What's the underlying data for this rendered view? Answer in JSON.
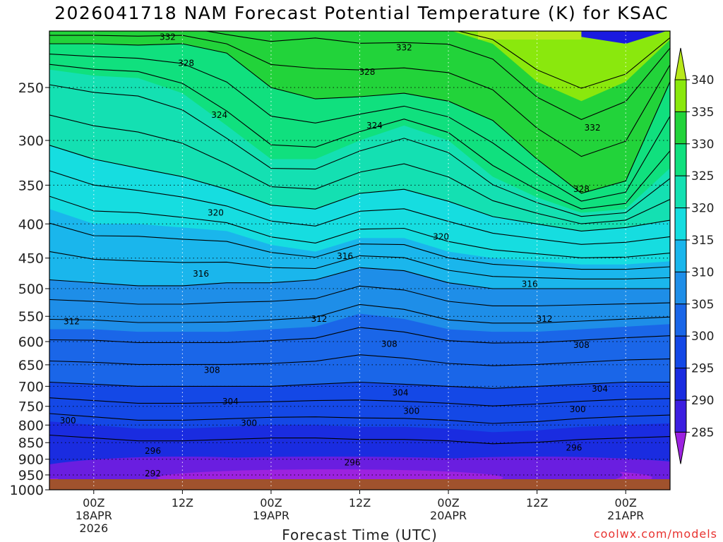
{
  "title": "2026041718 NAM Forecast Potential Temperature (K) for KSAC",
  "credit": "coolwx.com/models",
  "chart_data": {
    "type": "contour",
    "title": "2026041718 NAM Forecast Potential Temperature (K) for KSAC",
    "xlabel": "Forecast Time (UTC)",
    "ylabel": "",
    "y_ticks": [
      250,
      300,
      350,
      400,
      450,
      500,
      550,
      600,
      650,
      700,
      750,
      800,
      850,
      900,
      950,
      1000
    ],
    "y_scale": "log",
    "y_inverted": true,
    "ylim": [
      1000,
      200
    ],
    "x_ticks": [
      {
        "hour": 6,
        "lines": [
          "00Z",
          "18APR",
          "2026"
        ]
      },
      {
        "hour": 18,
        "lines": [
          "12Z"
        ]
      },
      {
        "hour": 30,
        "lines": [
          "00Z",
          "19APR"
        ]
      },
      {
        "hour": 42,
        "lines": [
          "12Z"
        ]
      },
      {
        "hour": 54,
        "lines": [
          "00Z",
          "20APR"
        ]
      },
      {
        "hour": 66,
        "lines": [
          "12Z"
        ]
      },
      {
        "hour": 78,
        "lines": [
          "00Z",
          "21APR"
        ]
      }
    ],
    "xlim": [
      0,
      84
    ],
    "colorbar": {
      "labels": [
        340,
        335,
        330,
        325,
        320,
        315,
        310,
        305,
        300,
        295,
        290,
        285
      ],
      "colors": [
        "#b8e81a",
        "#8ae80d",
        "#22d33a",
        "#10e07e",
        "#14e0b2",
        "#16dde0",
        "#1ab6ec",
        "#1e8ee8",
        "#1a66e8",
        "#1448e6",
        "#1a2ce0",
        "#3c1ee0",
        "#6a1ee0",
        "#9c22e0"
      ]
    },
    "labeled_contours": [
      {
        "value": "332",
        "x_hour": 16,
        "p": 210
      },
      {
        "value": "328",
        "x_hour": 18.5,
        "p": 230
      },
      {
        "value": "332",
        "x_hour": 48,
        "p": 218
      },
      {
        "value": "328",
        "x_hour": 43,
        "p": 237
      },
      {
        "value": "324",
        "x_hour": 23,
        "p": 275
      },
      {
        "value": "324",
        "x_hour": 44,
        "p": 285
      },
      {
        "value": "332",
        "x_hour": 73.5,
        "p": 287
      },
      {
        "value": "328",
        "x_hour": 72,
        "p": 355
      },
      {
        "value": "320",
        "x_hour": 22.5,
        "p": 385
      },
      {
        "value": "320",
        "x_hour": 53,
        "p": 418
      },
      {
        "value": "316",
        "x_hour": 40,
        "p": 447
      },
      {
        "value": "316",
        "x_hour": 20.5,
        "p": 475
      },
      {
        "value": "316",
        "x_hour": 65,
        "p": 492
      },
      {
        "value": "312",
        "x_hour": 3,
        "p": 560
      },
      {
        "value": "312",
        "x_hour": 36.5,
        "p": 555
      },
      {
        "value": "312",
        "x_hour": 67,
        "p": 555
      },
      {
        "value": "308",
        "x_hour": 46,
        "p": 605
      },
      {
        "value": "308",
        "x_hour": 72,
        "p": 607
      },
      {
        "value": "308",
        "x_hour": 22,
        "p": 662
      },
      {
        "value": "304",
        "x_hour": 47.5,
        "p": 716
      },
      {
        "value": "304",
        "x_hour": 74.5,
        "p": 706
      },
      {
        "value": "304",
        "x_hour": 24.5,
        "p": 738
      },
      {
        "value": "300",
        "x_hour": 49,
        "p": 762
      },
      {
        "value": "300",
        "x_hour": 71.5,
        "p": 758
      },
      {
        "value": "300",
        "x_hour": 2.5,
        "p": 788
      },
      {
        "value": "300",
        "x_hour": 27,
        "p": 795
      },
      {
        "value": "296",
        "x_hour": 71,
        "p": 865
      },
      {
        "value": "296",
        "x_hour": 14,
        "p": 875
      },
      {
        "value": "296",
        "x_hour": 41,
        "p": 910
      },
      {
        "value": "292",
        "x_hour": 14,
        "p": 945
      }
    ]
  }
}
